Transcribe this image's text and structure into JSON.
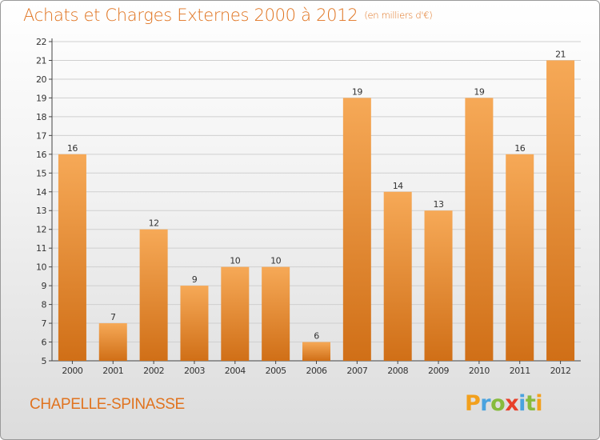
{
  "header": {
    "title": "Achats et Charges Externes 2000 à 2012",
    "subtitle": "(en milliers d'€)"
  },
  "footer": {
    "commune": "CHAPELLE-SPINASSE",
    "logo_text": "Proxiti"
  },
  "colors": {
    "accent": "#e0731f",
    "bar_light": "#f6a957",
    "bar_dark": "#d06f17"
  },
  "chart_data": {
    "type": "bar",
    "title": "Achats et Charges Externes 2000 à 2012",
    "subtitle": "(en milliers d'€)",
    "categories": [
      "2000",
      "2001",
      "2002",
      "2003",
      "2004",
      "2005",
      "2006",
      "2007",
      "2008",
      "2009",
      "2010",
      "2011",
      "2012"
    ],
    "values": [
      16,
      7,
      12,
      9,
      10,
      10,
      6,
      19,
      14,
      13,
      19,
      16,
      21
    ],
    "ylim": [
      5,
      22
    ],
    "yticks": [
      5,
      6,
      7,
      8,
      9,
      10,
      11,
      12,
      13,
      14,
      15,
      16,
      17,
      18,
      19,
      20,
      21,
      22
    ],
    "grid": true,
    "xlabel": "",
    "ylabel": ""
  }
}
